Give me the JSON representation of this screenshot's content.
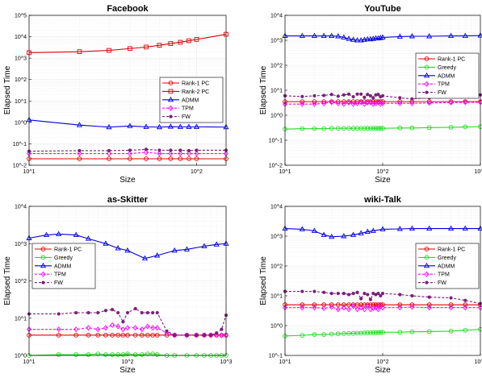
{
  "chart_data": [
    {
      "type": "line",
      "title": "Facebook",
      "xlabel": "Size",
      "ylabel": "Elapsed Time",
      "xscale": "log",
      "yscale": "log",
      "xlim": [
        10,
        150
      ],
      "ylim": [
        0.01,
        100000
      ],
      "x_ticks": [
        "10^1",
        "10^2"
      ],
      "y_ticks": [
        "10^-2",
        "10^-1",
        "10^0",
        "10^1",
        "10^2",
        "10^3",
        "10^4",
        "10^5"
      ],
      "grid": true,
      "legend_position": "inside right",
      "series": [
        {
          "name": "Rank-1 PC",
          "color": "#e00000",
          "marker": "circle",
          "dash": "solid",
          "x": [
            10,
            20,
            30,
            40,
            50,
            60,
            70,
            80,
            90,
            100,
            150
          ],
          "y": [
            0.02,
            0.02,
            0.02,
            0.02,
            0.02,
            0.02,
            0.02,
            0.02,
            0.02,
            0.02,
            0.02
          ]
        },
        {
          "name": "Rank-2 PC",
          "color": "#e00000",
          "marker": "square",
          "dash": "solid",
          "x": [
            10,
            20,
            30,
            40,
            50,
            60,
            70,
            80,
            90,
            100,
            150
          ],
          "y": [
            1800,
            2000,
            2300,
            2800,
            3300,
            4000,
            4800,
            5500,
            6500,
            7500,
            13000
          ]
        },
        {
          "name": "ADMM",
          "color": "#0000e0",
          "marker": "triangle",
          "dash": "solid",
          "x": [
            10,
            20,
            30,
            40,
            50,
            60,
            70,
            80,
            90,
            100,
            150
          ],
          "y": [
            1.3,
            0.75,
            0.6,
            0.68,
            0.62,
            0.6,
            0.63,
            0.62,
            0.62,
            0.62,
            0.6
          ]
        },
        {
          "name": "TPM",
          "color": "#ff00ff",
          "marker": "diamond",
          "dash": "dashed",
          "x": [
            10,
            20,
            30,
            40,
            50,
            60,
            70,
            80,
            90,
            100,
            150
          ],
          "y": [
            0.035,
            0.035,
            0.035,
            0.035,
            0.04,
            0.035,
            0.035,
            0.035,
            0.035,
            0.035,
            0.035
          ]
        },
        {
          "name": "FW",
          "color": "#7a1f7a",
          "marker": "dot",
          "dash": "dashed",
          "x": [
            10,
            20,
            30,
            40,
            50,
            60,
            70,
            80,
            90,
            100,
            150
          ],
          "y": [
            0.045,
            0.048,
            0.048,
            0.05,
            0.055,
            0.05,
            0.05,
            0.05,
            0.048,
            0.05,
            0.05
          ]
        }
      ]
    },
    {
      "type": "line",
      "title": "YouTube",
      "xlabel": "Size",
      "ylabel": "Elapsed Time",
      "xscale": "log",
      "yscale": "log",
      "xlim": [
        10,
        1000
      ],
      "ylim": [
        0.01,
        10000
      ],
      "x_ticks": [
        "10^1",
        "10^2",
        "10^3"
      ],
      "y_ticks": [
        "10^-2",
        "10^-1",
        "10^0",
        "10^1",
        "10^2",
        "10^3",
        "10^4"
      ],
      "grid": true,
      "legend_position": "inside right",
      "series": [
        {
          "name": "Rank-1 PC",
          "color": "#e00000",
          "marker": "circle",
          "dash": "solid",
          "x": [
            10,
            15,
            20,
            25,
            30,
            35,
            40,
            45,
            50,
            55,
            60,
            65,
            70,
            75,
            80,
            85,
            90,
            95,
            100,
            150,
            200,
            300,
            500,
            700,
            1000
          ],
          "y": [
            3.5,
            3.5,
            3.5,
            3.5,
            3.5,
            3.5,
            3.5,
            3.5,
            3.5,
            3.5,
            3.5,
            3.5,
            3.5,
            3.5,
            3.5,
            3.5,
            3.5,
            3.5,
            3.5,
            3.5,
            3.5,
            3.5,
            3.5,
            3.5,
            3.5
          ]
        },
        {
          "name": "Greedy",
          "color": "#22dd22",
          "marker": "circle",
          "dash": "solid",
          "x": [
            10,
            15,
            20,
            25,
            30,
            35,
            40,
            45,
            50,
            55,
            60,
            65,
            70,
            75,
            80,
            85,
            90,
            95,
            100,
            150,
            200,
            300,
            500,
            700,
            1000
          ],
          "y": [
            0.28,
            0.29,
            0.29,
            0.29,
            0.3,
            0.3,
            0.3,
            0.3,
            0.3,
            0.3,
            0.3,
            0.3,
            0.3,
            0.3,
            0.3,
            0.3,
            0.3,
            0.3,
            0.3,
            0.31,
            0.31,
            0.32,
            0.33,
            0.34,
            0.35
          ]
        },
        {
          "name": "ADMM",
          "color": "#0000e0",
          "marker": "triangle",
          "dash": "solid",
          "x": [
            10,
            15,
            20,
            25,
            30,
            35,
            40,
            45,
            50,
            55,
            60,
            65,
            70,
            75,
            80,
            85,
            90,
            95,
            100,
            150,
            200,
            300,
            500,
            700,
            1000
          ],
          "y": [
            1500,
            1500,
            1500,
            1500,
            1500,
            1450,
            1300,
            1150,
            1050,
            1000,
            1000,
            1050,
            1100,
            1100,
            1150,
            1200,
            1200,
            1250,
            1300,
            1400,
            1450,
            1450,
            1500,
            1500,
            1550
          ]
        },
        {
          "name": "TPM",
          "color": "#ff00ff",
          "marker": "diamond",
          "dash": "dashed",
          "x": [
            10,
            15,
            20,
            25,
            30,
            35,
            40,
            45,
            50,
            55,
            60,
            65,
            70,
            75,
            80,
            85,
            90,
            95,
            100,
            150,
            200,
            300,
            500,
            700,
            1000
          ],
          "y": [
            2.8,
            2.8,
            2.8,
            3.0,
            3.3,
            3.0,
            2.8,
            3.2,
            2.8,
            3.0,
            3.3,
            2.8,
            3.2,
            3.3,
            2.8,
            3.0,
            3.3,
            2.8,
            3.0,
            3.0,
            3.0,
            3.1,
            3.2,
            3.3,
            3.3
          ]
        },
        {
          "name": "FW",
          "color": "#7a1f7a",
          "marker": "dot",
          "dash": "dashed",
          "x": [
            10,
            15,
            20,
            25,
            30,
            35,
            40,
            45,
            50,
            55,
            60,
            65,
            70,
            75,
            80,
            85,
            90,
            95,
            100,
            150,
            200,
            300,
            500,
            700,
            1000
          ],
          "y": [
            6.0,
            5.6,
            6.0,
            6.2,
            6.8,
            5.8,
            6.5,
            7.0,
            5.5,
            7.0,
            7.0,
            5.2,
            6.8,
            6.0,
            5.0,
            6.5,
            6.8,
            5.5,
            6.0,
            5.0,
            4.5,
            5.0,
            7.5,
            8.0,
            6.5
          ]
        }
      ]
    },
    {
      "type": "line",
      "title": "as-Skitter",
      "xlabel": "Size",
      "ylabel": "Elapsed Time",
      "xscale": "log",
      "yscale": "log",
      "xlim": [
        10,
        1000
      ],
      "ylim": [
        1,
        10000
      ],
      "x_ticks": [
        "10^1",
        "10^2",
        "10^3"
      ],
      "y_ticks": [
        "10^0",
        "10^1",
        "10^2",
        "10^3",
        "10^4"
      ],
      "grid": true,
      "legend_position": "inside left",
      "series": [
        {
          "name": "Rank-1 PC",
          "color": "#e00000",
          "marker": "circle",
          "dash": "solid",
          "x": [
            10,
            20,
            30,
            40,
            50,
            60,
            70,
            80,
            90,
            100,
            120,
            140,
            160,
            180,
            200,
            250,
            300,
            400,
            500,
            600,
            700,
            800,
            900,
            1000
          ],
          "y": [
            3.5,
            3.5,
            3.5,
            3.5,
            3.5,
            3.5,
            3.5,
            3.5,
            3.5,
            3.5,
            3.5,
            3.5,
            3.5,
            3.5,
            3.5,
            3.5,
            3.5,
            3.5,
            3.5,
            3.5,
            3.5,
            3.5,
            3.5,
            3.5
          ]
        },
        {
          "name": "Greedy",
          "color": "#22dd22",
          "marker": "circle",
          "dash": "solid",
          "x": [
            10,
            20,
            30,
            40,
            50,
            60,
            70,
            80,
            90,
            100,
            120,
            140,
            160,
            180,
            200,
            250,
            300,
            400,
            500,
            600,
            700,
            800,
            900,
            1000
          ],
          "y": [
            1.0,
            1.05,
            1.05,
            1.05,
            1.1,
            1.05,
            1.05,
            1.05,
            1.05,
            1.1,
            1.05,
            1.05,
            1.1,
            1.1,
            1.05,
            1.0,
            1.0,
            1.0,
            1.0,
            1.0,
            1.0,
            1.0,
            1.0,
            1.0
          ]
        },
        {
          "name": "ADMM",
          "color": "#0000e0",
          "marker": "triangle",
          "dash": "solid",
          "x": [
            10,
            15,
            20,
            30,
            40,
            60,
            80,
            100,
            150,
            200,
            300,
            400,
            600,
            800,
            1000
          ],
          "y": [
            1400,
            1700,
            1800,
            1700,
            1350,
            1000,
            750,
            650,
            400,
            480,
            650,
            700,
            850,
            950,
            1000
          ]
        },
        {
          "name": "TPM",
          "color": "#ff00ff",
          "marker": "diamond",
          "dash": "dashed",
          "x": [
            10,
            20,
            30,
            40,
            50,
            60,
            70,
            80,
            90,
            100,
            120,
            140,
            160,
            180,
            200,
            250,
            300,
            400,
            500,
            600,
            700,
            800,
            900,
            1000
          ],
          "y": [
            5.0,
            5.0,
            5.0,
            5.5,
            5.0,
            5.5,
            6.5,
            6.0,
            5.0,
            5.5,
            5.5,
            5.0,
            6.0,
            5.5,
            5.5,
            4.0,
            3.5,
            3.5,
            3.5,
            3.5,
            3.5,
            3.5,
            3.5,
            3.5
          ]
        },
        {
          "name": "FW",
          "color": "#7a1f7a",
          "marker": "dot",
          "dash": "dashed",
          "x": [
            10,
            20,
            30,
            40,
            50,
            60,
            70,
            80,
            90,
            100,
            120,
            140,
            160,
            180,
            200,
            250,
            300,
            400,
            500,
            600,
            700,
            800,
            900,
            1000
          ],
          "y": [
            13,
            13,
            14,
            14,
            14,
            16,
            17,
            14,
            8,
            14,
            18,
            14,
            14,
            14,
            14,
            4.5,
            3.5,
            3.5,
            3.5,
            3.5,
            3.5,
            4.0,
            5.0,
            12
          ]
        }
      ]
    },
    {
      "type": "line",
      "title": "wiki-Talk",
      "xlabel": "Size",
      "ylabel": "Elapsed Time",
      "xscale": "log",
      "yscale": "log",
      "xlim": [
        10,
        1000
      ],
      "ylim": [
        0.1,
        10000
      ],
      "x_ticks": [
        "10^1",
        "10^2",
        "10^3"
      ],
      "y_ticks": [
        "10^-1",
        "10^0",
        "10^1",
        "10^2",
        "10^3",
        "10^4"
      ],
      "grid": true,
      "legend_position": "inside right",
      "series": [
        {
          "name": "Rank-1 PC",
          "color": "#e00000",
          "marker": "circle",
          "dash": "solid",
          "x": [
            10,
            15,
            20,
            25,
            30,
            35,
            40,
            45,
            50,
            55,
            60,
            65,
            70,
            75,
            80,
            85,
            90,
            95,
            100,
            150,
            200,
            300,
            500,
            700,
            1000
          ],
          "y": [
            5.0,
            5.0,
            5.0,
            5.0,
            5.0,
            5.0,
            5.0,
            5.0,
            5.0,
            5.0,
            5.0,
            5.0,
            5.0,
            5.0,
            5.0,
            5.0,
            5.0,
            5.0,
            5.0,
            5.0,
            5.0,
            5.0,
            5.0,
            5.0,
            5.0
          ]
        },
        {
          "name": "Greedy",
          "color": "#22dd22",
          "marker": "circle",
          "dash": "solid",
          "x": [
            10,
            15,
            20,
            25,
            30,
            35,
            40,
            45,
            50,
            55,
            60,
            65,
            70,
            75,
            80,
            85,
            90,
            95,
            100,
            150,
            200,
            300,
            500,
            700,
            1000
          ],
          "y": [
            0.45,
            0.47,
            0.5,
            0.5,
            0.52,
            0.53,
            0.54,
            0.55,
            0.55,
            0.56,
            0.56,
            0.57,
            0.57,
            0.58,
            0.58,
            0.58,
            0.59,
            0.59,
            0.6,
            0.6,
            0.62,
            0.63,
            0.65,
            0.7,
            0.75
          ]
        },
        {
          "name": "ADMM",
          "color": "#0000e0",
          "marker": "triangle",
          "dash": "solid",
          "x": [
            10,
            15,
            20,
            25,
            30,
            40,
            50,
            60,
            70,
            80,
            100,
            150,
            200,
            300,
            500,
            700,
            1000
          ],
          "y": [
            1800,
            1700,
            1500,
            1100,
            950,
            1000,
            1100,
            1250,
            1400,
            1500,
            1700,
            1750,
            1800,
            1800,
            1800,
            1800,
            1800
          ]
        },
        {
          "name": "TPM",
          "color": "#ff00ff",
          "marker": "diamond",
          "dash": "dashed",
          "x": [
            10,
            15,
            20,
            25,
            30,
            35,
            40,
            45,
            50,
            55,
            60,
            65,
            70,
            75,
            80,
            85,
            90,
            95,
            100,
            150,
            200,
            300,
            500,
            700,
            1000
          ],
          "y": [
            4.0,
            4.0,
            4.0,
            3.8,
            4.2,
            3.5,
            4.0,
            3.5,
            4.5,
            3.5,
            4.0,
            3.5,
            4.5,
            3.5,
            3.8,
            4.0,
            3.5,
            4.5,
            4.0,
            4.0,
            4.2,
            4.0,
            4.0,
            4.0,
            4.0
          ]
        },
        {
          "name": "FW",
          "color": "#7a1f7a",
          "marker": "dot",
          "dash": "dashed",
          "x": [
            10,
            15,
            20,
            25,
            30,
            35,
            40,
            45,
            50,
            55,
            60,
            65,
            70,
            75,
            80,
            85,
            90,
            95,
            100,
            150,
            200,
            300,
            500,
            700,
            1000
          ],
          "y": [
            14,
            14,
            14,
            13,
            12,
            12,
            12,
            11,
            12,
            13,
            8,
            12,
            11,
            7.5,
            12,
            11,
            12,
            10,
            12,
            11,
            10,
            9,
            8.5,
            7,
            5.5
          ]
        }
      ]
    }
  ]
}
